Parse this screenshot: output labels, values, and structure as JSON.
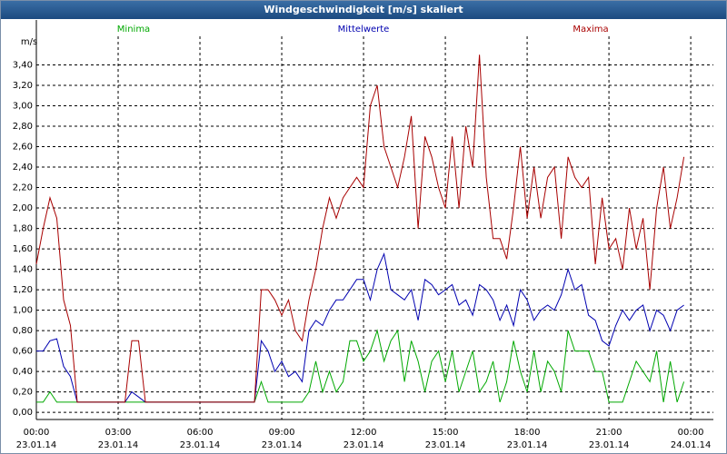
{
  "chart_data": {
    "type": "line",
    "title": "Windgeschwindigkeit [m/s] skaliert",
    "ylabel": "m/s",
    "x": [
      0,
      0.25,
      0.5,
      0.75,
      1,
      1.25,
      1.5,
      1.75,
      2,
      2.25,
      2.5,
      2.75,
      3,
      3.25,
      3.5,
      3.75,
      4,
      4.25,
      4.5,
      4.75,
      5,
      5.25,
      5.5,
      5.75,
      6,
      6.25,
      6.5,
      6.75,
      7,
      7.25,
      7.5,
      7.75,
      8,
      8.25,
      8.5,
      8.75,
      9,
      9.25,
      9.5,
      9.75,
      10,
      10.25,
      10.5,
      10.75,
      11,
      11.25,
      11.5,
      11.75,
      12,
      12.25,
      12.5,
      12.75,
      13,
      13.25,
      13.5,
      13.75,
      14,
      14.25,
      14.5,
      14.75,
      15,
      15.25,
      15.5,
      15.75,
      16,
      16.25,
      16.5,
      16.75,
      17,
      17.25,
      17.5,
      17.75,
      18,
      18.25,
      18.5,
      18.75,
      19,
      19.25,
      19.5,
      19.75,
      20,
      20.25,
      20.5,
      20.75,
      21,
      21.25,
      21.5,
      21.75,
      22,
      22.25,
      22.5,
      22.75,
      23,
      23.25,
      23.5,
      23.75
    ],
    "series": [
      {
        "name": "Minima",
        "color": "#00a800",
        "values": [
          0.1,
          0.1,
          0.2,
          0.1,
          0.1,
          0.1,
          0.1,
          0.1,
          0.1,
          0.1,
          0.1,
          0.1,
          0.1,
          0.1,
          0.1,
          0.1,
          0.1,
          0.1,
          0.1,
          0.1,
          0.1,
          0.1,
          0.1,
          0.1,
          0.1,
          0.1,
          0.1,
          0.1,
          0.1,
          0.1,
          0.1,
          0.1,
          0.1,
          0.3,
          0.1,
          0.1,
          0.1,
          0.1,
          0.1,
          0.1,
          0.2,
          0.5,
          0.2,
          0.4,
          0.2,
          0.3,
          0.7,
          0.7,
          0.5,
          0.6,
          0.8,
          0.5,
          0.7,
          0.8,
          0.3,
          0.7,
          0.5,
          0.2,
          0.5,
          0.6,
          0.3,
          0.6,
          0.2,
          0.4,
          0.6,
          0.2,
          0.3,
          0.5,
          0.1,
          0.3,
          0.7,
          0.4,
          0.2,
          0.6,
          0.2,
          0.5,
          0.4,
          0.2,
          0.8,
          0.6,
          0.6,
          0.6,
          0.4,
          0.4,
          0.1,
          0.1,
          0.1,
          0.3,
          0.5,
          0.4,
          0.3,
          0.6,
          0.1,
          0.5,
          0.1,
          0.3
        ]
      },
      {
        "name": "Mittelwerte",
        "color": "#0000b0",
        "values": [
          0.6,
          0.6,
          0.7,
          0.72,
          0.45,
          0.35,
          0.1,
          0.1,
          0.1,
          0.1,
          0.1,
          0.1,
          0.1,
          0.1,
          0.2,
          0.15,
          0.1,
          0.1,
          0.1,
          0.1,
          0.1,
          0.1,
          0.1,
          0.1,
          0.1,
          0.1,
          0.1,
          0.1,
          0.1,
          0.1,
          0.1,
          0.1,
          0.1,
          0.7,
          0.6,
          0.4,
          0.5,
          0.35,
          0.4,
          0.3,
          0.8,
          0.9,
          0.85,
          1.0,
          1.1,
          1.1,
          1.2,
          1.3,
          1.3,
          1.1,
          1.4,
          1.55,
          1.2,
          1.15,
          1.1,
          1.2,
          0.9,
          1.3,
          1.25,
          1.15,
          1.2,
          1.25,
          1.05,
          1.1,
          0.95,
          1.25,
          1.2,
          1.1,
          0.9,
          1.05,
          0.85,
          1.2,
          1.1,
          0.9,
          1.0,
          1.05,
          1.0,
          1.15,
          1.4,
          1.2,
          1.25,
          0.95,
          0.9,
          0.7,
          0.65,
          0.85,
          1.0,
          0.9,
          1.0,
          1.05,
          0.8,
          1.0,
          0.95,
          0.8,
          1.0,
          1.05
        ]
      },
      {
        "name": "Maxima",
        "color": "#a80000",
        "values": [
          1.45,
          1.8,
          2.1,
          1.9,
          1.1,
          0.85,
          0.1,
          0.1,
          0.1,
          0.1,
          0.1,
          0.1,
          0.1,
          0.1,
          0.7,
          0.7,
          0.1,
          0.1,
          0.1,
          0.1,
          0.1,
          0.1,
          0.1,
          0.1,
          0.1,
          0.1,
          0.1,
          0.1,
          0.1,
          0.1,
          0.1,
          0.1,
          0.1,
          1.2,
          1.2,
          1.1,
          0.95,
          1.1,
          0.8,
          0.7,
          1.1,
          1.4,
          1.8,
          2.1,
          1.9,
          2.1,
          2.2,
          2.3,
          2.2,
          3.0,
          3.2,
          2.6,
          2.4,
          2.2,
          2.5,
          2.9,
          1.8,
          2.7,
          2.5,
          2.2,
          2.0,
          2.7,
          2.0,
          2.8,
          2.4,
          3.5,
          2.3,
          1.7,
          1.7,
          1.5,
          2.0,
          2.6,
          1.9,
          2.4,
          1.9,
          2.3,
          2.4,
          1.7,
          2.5,
          2.3,
          2.2,
          2.3,
          1.45,
          2.1,
          1.6,
          1.7,
          1.4,
          2.0,
          1.6,
          1.9,
          1.2,
          2.0,
          2.4,
          1.8,
          2.1,
          2.5
        ]
      }
    ],
    "xlim": [
      0,
      24.83
    ],
    "ylim": [
      -0.07,
      3.68
    ],
    "xticks": [
      {
        "value": 0,
        "label": "00:00"
      },
      {
        "value": 3,
        "label": "03:00"
      },
      {
        "value": 6,
        "label": "06:00"
      },
      {
        "value": 9,
        "label": "09:00"
      },
      {
        "value": 12,
        "label": "12:00"
      },
      {
        "value": 15,
        "label": "15:00"
      },
      {
        "value": 18,
        "label": "18:00"
      },
      {
        "value": 21,
        "label": "21:00"
      },
      {
        "value": 24,
        "label": "00:00"
      }
    ],
    "xtick_dates": [
      "23.01.14",
      "23.01.14",
      "23.01.14",
      "23.01.14",
      "23.01.14",
      "23.01.14",
      "23.01.14",
      "23.01.14",
      "24.01.14"
    ],
    "yticks": [
      {
        "value": 0,
        "label": "0,00"
      },
      {
        "value": 0.2,
        "label": "0,20"
      },
      {
        "value": 0.4,
        "label": "0,40"
      },
      {
        "value": 0.6,
        "label": "0,60"
      },
      {
        "value": 0.8,
        "label": "0,80"
      },
      {
        "value": 1,
        "label": "1,00"
      },
      {
        "value": 1.2,
        "label": "1,20"
      },
      {
        "value": 1.4,
        "label": "1,40"
      },
      {
        "value": 1.6,
        "label": "1,60"
      },
      {
        "value": 1.8,
        "label": "1,80"
      },
      {
        "value": 2,
        "label": "2,00"
      },
      {
        "value": 2.2,
        "label": "2,20"
      },
      {
        "value": 2.4,
        "label": "2,40"
      },
      {
        "value": 2.6,
        "label": "2,60"
      },
      {
        "value": 2.8,
        "label": "2,80"
      },
      {
        "value": 3,
        "label": "3,00"
      },
      {
        "value": 3.2,
        "label": "3,20"
      },
      {
        "value": 3.4,
        "label": "3,40"
      }
    ],
    "grid": true
  }
}
